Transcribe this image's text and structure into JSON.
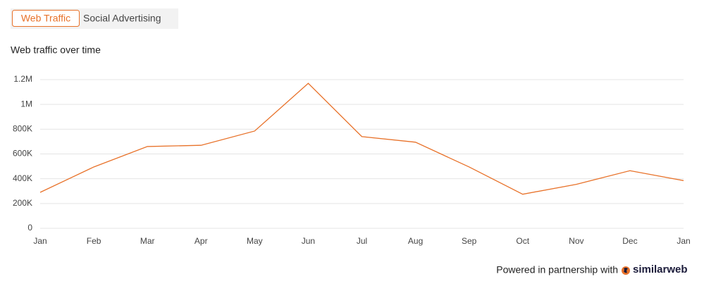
{
  "tabs": [
    "Web Traffic",
    "Social Advertising"
  ],
  "chart_data": {
    "type": "line",
    "title": "Web traffic over time",
    "categories": [
      "Jan",
      "Feb",
      "Mar",
      "Apr",
      "May",
      "Jun",
      "Jul",
      "Aug",
      "Sep",
      "Oct",
      "Nov",
      "Dec",
      "Jan"
    ],
    "values": [
      290000,
      495000,
      660000,
      670000,
      785000,
      1170000,
      740000,
      695000,
      495000,
      275000,
      355000,
      465000,
      385000
    ],
    "color": "#e8722a",
    "ylim": [
      0,
      1200000
    ],
    "yticks": [
      0,
      {
        "value": 200000,
        "label": "200K"
      },
      {
        "value": 400000,
        "label": "400K"
      },
      {
        "value": 600000,
        "label": "600K"
      },
      {
        "value": 800000,
        "label": "800K"
      },
      {
        "value": 1000000,
        "label": "1M"
      },
      {
        "value": 1200000,
        "label": "1.2M"
      }
    ],
    "grid": true
  },
  "footer": {
    "text": "Powered in partnership with",
    "brand": "similarweb"
  }
}
